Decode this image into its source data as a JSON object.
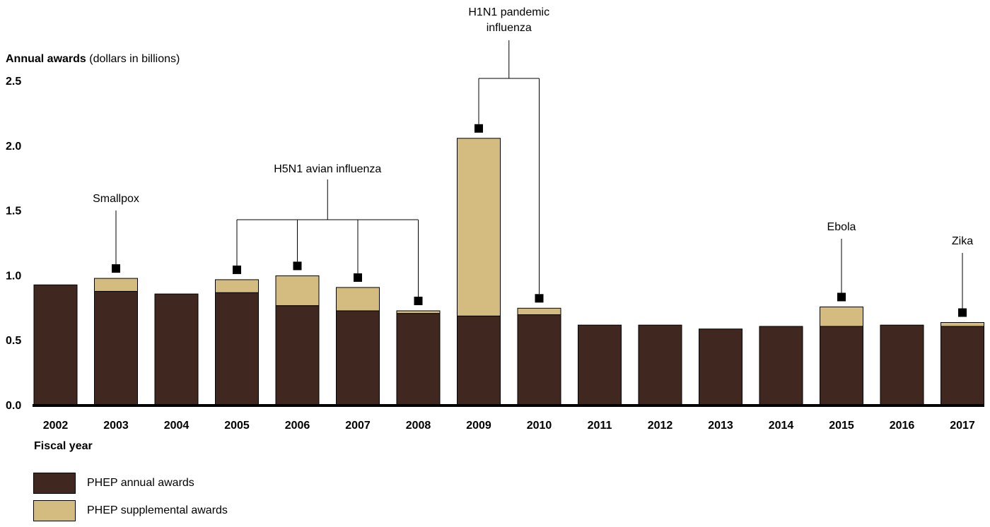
{
  "colors": {
    "annual": "#40271f",
    "supplemental": "#d4bb7f",
    "axis": "#000000"
  },
  "chart_data": {
    "type": "bar",
    "stacked": true,
    "ylabel_bold": "Annual awards",
    "ylabel_rest": "(dollars in billions)",
    "xlabel": "Fiscal year",
    "ylim": [
      0,
      2.5
    ],
    "yticks": [
      "0.0",
      "0.5",
      "1.0",
      "1.5",
      "2.0",
      "2.5"
    ],
    "categories": [
      "2002",
      "2003",
      "2004",
      "2005",
      "2006",
      "2007",
      "2008",
      "2009",
      "2010",
      "2011",
      "2012",
      "2013",
      "2014",
      "2015",
      "2016",
      "2017"
    ],
    "series": [
      {
        "name": "PHEP annual awards",
        "values": [
          0.93,
          0.88,
          0.86,
          0.87,
          0.77,
          0.73,
          0.71,
          0.69,
          0.7,
          0.62,
          0.62,
          0.59,
          0.61,
          0.61,
          0.62,
          0.61
        ]
      },
      {
        "name": "PHEP supplemental awards",
        "values": [
          0,
          0.1,
          0,
          0.1,
          0.23,
          0.18,
          0.02,
          1.37,
          0.05,
          0,
          0,
          0,
          0,
          0.15,
          0,
          0.03
        ]
      }
    ],
    "annotations": [
      {
        "label": "Smallpox",
        "years": [
          "2003"
        ]
      },
      {
        "label": "H5N1 avian influenza",
        "years": [
          "2005",
          "2006",
          "2007",
          "2008"
        ]
      },
      {
        "label_lines": [
          "H1N1 pandemic",
          "influenza"
        ],
        "years": [
          "2009",
          "2010"
        ]
      },
      {
        "label": "Ebola",
        "years": [
          "2015"
        ]
      },
      {
        "label": "Zika",
        "years": [
          "2017"
        ]
      }
    ]
  },
  "legend": {
    "annual_label": "PHEP annual awards",
    "supplemental_label": "PHEP supplemental awards"
  }
}
